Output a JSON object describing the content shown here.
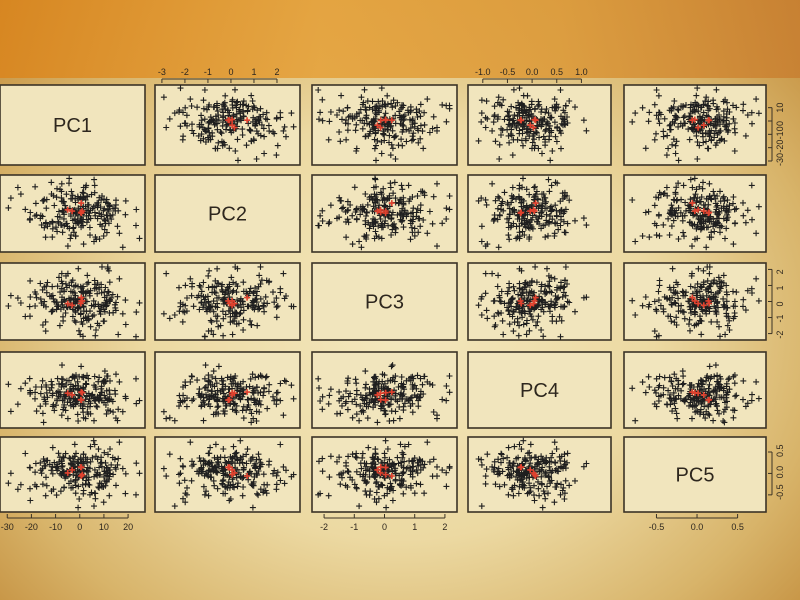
{
  "chart_data": {
    "type": "scatter",
    "variables": [
      "PC1",
      "PC2",
      "PC3",
      "PC4",
      "PC5"
    ],
    "ranges": {
      "PC1": [
        -33,
        27
      ],
      "PC2": [
        -3.3,
        3.0
      ],
      "PC3": [
        -2.4,
        2.4
      ],
      "PC4": [
        -1.3,
        1.6
      ],
      "PC5": [
        -0.9,
        0.85
      ]
    },
    "axes": {
      "top": [
        {
          "var": "PC2",
          "ticks": [
            "-3",
            "-2",
            "-1",
            "0",
            "1",
            "2"
          ],
          "values": [
            -3,
            -2,
            -1,
            0,
            1,
            2
          ]
        },
        {
          "var": "PC4",
          "ticks": [
            "-1.0",
            "-0.5",
            "0.0",
            "0.5",
            "1.0"
          ],
          "values": [
            -1.0,
            -0.5,
            0.0,
            0.5,
            1.0
          ]
        }
      ],
      "bottom": [
        {
          "var": "PC1",
          "ticks": [
            "-30",
            "-20",
            "-10",
            "0",
            "10",
            "20"
          ],
          "values": [
            -30,
            -20,
            -10,
            0,
            10,
            20
          ]
        },
        {
          "var": "PC3",
          "ticks": [
            "-2",
            "-1",
            "0",
            "1",
            "2"
          ],
          "values": [
            -2,
            -1,
            0,
            1,
            2
          ]
        },
        {
          "var": "PC5",
          "ticks": [
            "-0.5",
            "0.0",
            "0.5"
          ],
          "values": [
            -0.5,
            0.0,
            0.5
          ]
        }
      ],
      "right": [
        {
          "var": "PC1",
          "ticks": [
            "10",
            "0",
            "-10",
            "-20",
            "-30"
          ],
          "values": [
            10,
            0,
            -10,
            -20,
            -30
          ]
        },
        {
          "var": "PC3",
          "ticks": [
            "2",
            "1",
            "0",
            "-1",
            "-2"
          ],
          "values": [
            2,
            1,
            0,
            -1,
            -2
          ]
        },
        {
          "var": "PC5",
          "ticks": [
            "0.5",
            "0.0",
            "-0.5"
          ],
          "values": [
            0.5,
            0.0,
            -0.5
          ]
        }
      ]
    },
    "point_count": 220,
    "marker": "+",
    "colors": {
      "points": "#1f1f1f",
      "highlight": "#e0422f"
    },
    "highlight_count": 6
  }
}
